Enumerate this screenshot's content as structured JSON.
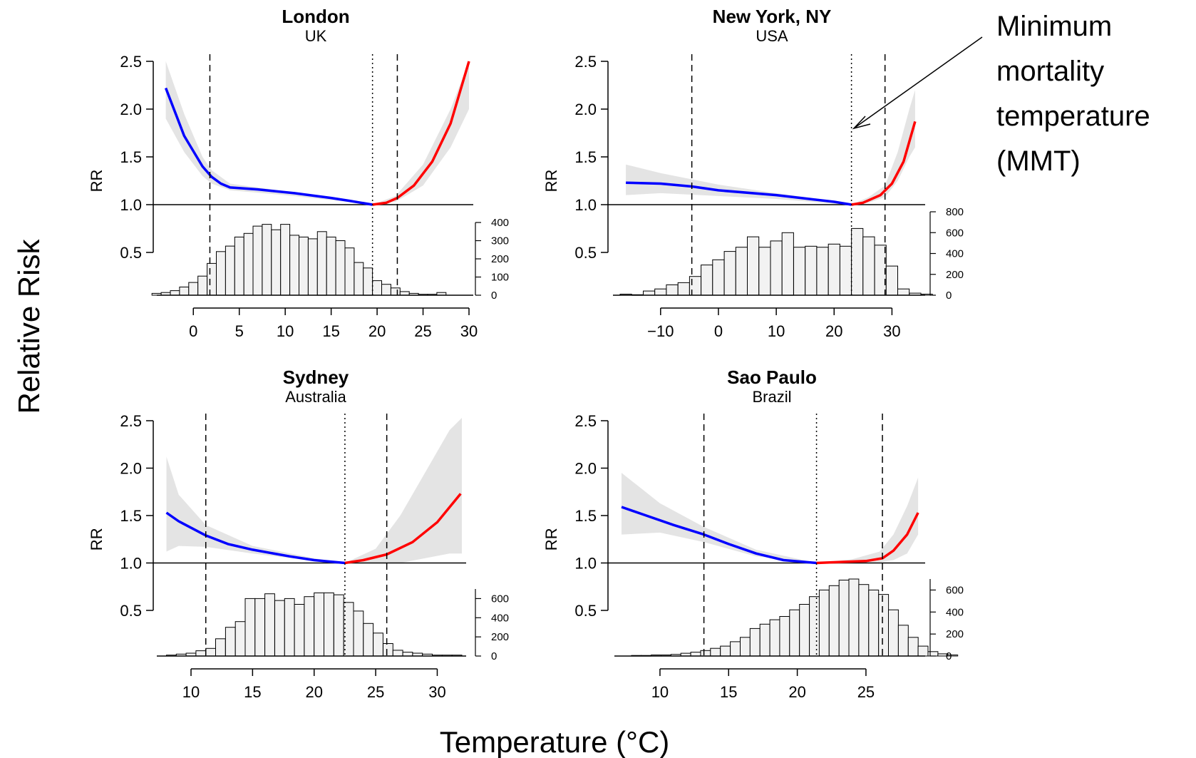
{
  "figure": {
    "ylabel": "Relative Risk",
    "xlabel": "Temperature (°C)",
    "annotation": [
      "Minimum",
      "mortality",
      "temperature",
      "(MMT)"
    ]
  },
  "colors": {
    "cold": "#0000ff",
    "heat": "#ff0000",
    "ci": "#e4e4e4",
    "bars": "#f2f2f2"
  },
  "chart_data": [
    {
      "type": "line",
      "title": "London",
      "subtitle": "UK",
      "ylabel": "RR",
      "xticks": [
        0,
        5,
        10,
        15,
        20,
        25,
        30
      ],
      "xlim": [
        -3.2,
        30.0
      ],
      "yticks": [
        "0.5",
        "1.0",
        "1.5",
        "2.0",
        "2.5"
      ],
      "ylim": [
        0.5,
        2.5
      ],
      "percentiles": [
        1.8,
        22.2
      ],
      "mmt": 19.5,
      "cold_curve": {
        "x": [
          -3,
          -1,
          1,
          2,
          3,
          4,
          7,
          11,
          15,
          17,
          19.5
        ],
        "y": [
          2.22,
          1.72,
          1.4,
          1.29,
          1.22,
          1.18,
          1.16,
          1.12,
          1.07,
          1.04,
          1.0
        ]
      },
      "heat_curve": {
        "x": [
          19.5,
          21,
          22.2,
          24,
          26,
          28,
          30
        ],
        "y": [
          1.0,
          1.02,
          1.07,
          1.2,
          1.45,
          1.85,
          2.5
        ]
      },
      "ci_upper": {
        "x": [
          -3,
          -1,
          1,
          2,
          4,
          10,
          19.5,
          22,
          25,
          28,
          30
        ],
        "y": [
          2.5,
          1.95,
          1.5,
          1.36,
          1.22,
          1.14,
          1.0,
          1.09,
          1.42,
          2.0,
          2.5
        ]
      },
      "ci_lower": {
        "x": [
          -3,
          -1,
          1,
          2,
          4,
          10,
          19.5,
          22,
          25,
          28,
          30
        ],
        "y": [
          1.9,
          1.55,
          1.3,
          1.22,
          1.15,
          1.1,
          1.0,
          1.03,
          1.2,
          1.6,
          2.0
        ]
      },
      "hist": {
        "start": -4.5,
        "width": 1.0,
        "counts": [
          10,
          15,
          25,
          45,
          70,
          105,
          175,
          240,
          270,
          320,
          340,
          380,
          390,
          360,
          390,
          330,
          320,
          310,
          350,
          320,
          300,
          260,
          180,
          150,
          80,
          60,
          40,
          20,
          10,
          5,
          5,
          15
        ],
        "ticks": [
          "0",
          "100",
          "200",
          "300",
          "400"
        ],
        "max": 400
      }
    },
    {
      "type": "line",
      "title": "New York, NY",
      "subtitle": "USA",
      "ylabel": "RR",
      "xticks": [
        -10,
        0,
        10,
        20,
        30
      ],
      "xlim": [
        -17.0,
        35.0
      ],
      "yticks": [
        "0.5",
        "1.0",
        "1.5",
        "2.0",
        "2.5"
      ],
      "ylim": [
        0.5,
        2.5
      ],
      "percentiles": [
        -4.6,
        28.8
      ],
      "mmt": 23.0,
      "cold_curve": {
        "x": [
          -16,
          -10,
          -4.6,
          0,
          10,
          20,
          23
        ],
        "y": [
          1.23,
          1.22,
          1.19,
          1.15,
          1.1,
          1.03,
          1.0
        ]
      },
      "heat_curve": {
        "x": [
          23,
          25,
          28,
          30,
          32,
          34
        ],
        "y": [
          1.0,
          1.02,
          1.1,
          1.22,
          1.45,
          1.87
        ]
      },
      "ci_upper": {
        "x": [
          -16,
          -10,
          0,
          10,
          20,
          23,
          26,
          28.8,
          31,
          33,
          34
        ],
        "y": [
          1.42,
          1.33,
          1.21,
          1.12,
          1.04,
          1.0,
          1.08,
          1.2,
          1.55,
          2.0,
          2.2
        ]
      },
      "ci_lower": {
        "x": [
          -16,
          -10,
          0,
          10,
          20,
          23,
          26,
          28.8,
          31,
          33,
          34
        ],
        "y": [
          1.1,
          1.12,
          1.09,
          1.06,
          1.01,
          1.0,
          1.02,
          1.08,
          1.25,
          1.5,
          1.6
        ]
      },
      "hist": {
        "start": -17,
        "width": 2.0,
        "counts": [
          10,
          5,
          40,
          60,
          100,
          120,
          180,
          290,
          340,
          420,
          460,
          560,
          460,
          520,
          600,
          460,
          470,
          460,
          490,
          470,
          640,
          560,
          480,
          280,
          60,
          20,
          10
        ],
        "ticks": [
          "0",
          "200",
          "400",
          "600",
          "800"
        ],
        "max": 800
      }
    },
    {
      "type": "line",
      "title": "Sydney",
      "subtitle": "Australia",
      "ylabel": "RR",
      "xticks": [
        10,
        15,
        20,
        25,
        30
      ],
      "xlim": [
        7.8,
        32.0
      ],
      "yticks": [
        "0.5",
        "1.0",
        "1.5",
        "2.0",
        "2.5"
      ],
      "ylim": [
        0.5,
        2.5
      ],
      "percentiles": [
        11.2,
        25.9
      ],
      "mmt": 22.5,
      "cold_curve": {
        "x": [
          8,
          9,
          11.2,
          13,
          15,
          18,
          20,
          22.5
        ],
        "y": [
          1.53,
          1.44,
          1.29,
          1.2,
          1.14,
          1.07,
          1.03,
          1.0
        ]
      },
      "heat_curve": {
        "x": [
          22.5,
          24,
          25.9,
          28,
          30,
          31.9
        ],
        "y": [
          1.0,
          1.03,
          1.09,
          1.22,
          1.43,
          1.73
        ]
      },
      "ci_upper": {
        "x": [
          8,
          9,
          11.2,
          15,
          20,
          22.5,
          25,
          27,
          29,
          31,
          32
        ],
        "y": [
          2.12,
          1.72,
          1.4,
          1.18,
          1.05,
          1.0,
          1.15,
          1.5,
          1.95,
          2.4,
          2.6
        ]
      },
      "ci_lower": {
        "x": [
          8,
          9,
          11.2,
          15,
          20,
          22.5,
          25,
          27,
          29,
          31,
          32
        ],
        "y": [
          1.12,
          1.18,
          1.17,
          1.1,
          1.02,
          1.0,
          1.0,
          1.0,
          1.05,
          1.1,
          1.1
        ]
      },
      "hist": {
        "start": 8,
        "width": 0.8,
        "counts": [
          10,
          20,
          30,
          55,
          80,
          180,
          300,
          360,
          600,
          600,
          650,
          580,
          600,
          540,
          620,
          660,
          660,
          640,
          560,
          470,
          340,
          240,
          130,
          60,
          40,
          30,
          20,
          10,
          10,
          10
        ],
        "ticks": [
          "0",
          "200",
          "400",
          "600"
        ],
        "max": 700
      }
    },
    {
      "type": "line",
      "title": "Sao Paulo",
      "subtitle": "Brazil",
      "ylabel": "RR",
      "xticks": [
        10,
        15,
        20,
        25
      ],
      "xlim": [
        7.2,
        29.0
      ],
      "yticks": [
        "0.5",
        "1.0",
        "1.5",
        "2.0",
        "2.5"
      ],
      "ylim": [
        0.5,
        2.5
      ],
      "percentiles": [
        13.2,
        26.2
      ],
      "mmt": 21.4,
      "cold_curve": {
        "x": [
          7.2,
          9,
          11,
          13.2,
          15,
          17,
          19,
          21.4
        ],
        "y": [
          1.59,
          1.5,
          1.4,
          1.3,
          1.2,
          1.1,
          1.03,
          1.0
        ]
      },
      "heat_curve": {
        "x": [
          21.4,
          23,
          25,
          26.2,
          27,
          28,
          28.8
        ],
        "y": [
          1.0,
          1.01,
          1.02,
          1.05,
          1.13,
          1.3,
          1.53
        ]
      },
      "ci_upper": {
        "x": [
          7.2,
          10,
          13.2,
          17,
          21.4,
          24,
          26,
          27,
          28,
          28.8
        ],
        "y": [
          1.95,
          1.63,
          1.38,
          1.14,
          1.0,
          1.04,
          1.12,
          1.3,
          1.6,
          1.9
        ]
      },
      "ci_lower": {
        "x": [
          7.2,
          10,
          13.2,
          17,
          21.4,
          24,
          26,
          27,
          28,
          28.8
        ],
        "y": [
          1.3,
          1.32,
          1.22,
          1.07,
          1.0,
          1.0,
          1.01,
          1.03,
          1.1,
          1.3
        ]
      },
      "hist": {
        "start": 7.2,
        "width": 0.72,
        "counts": [
          0,
          5,
          5,
          10,
          10,
          15,
          25,
          35,
          50,
          70,
          90,
          130,
          170,
          250,
          290,
          330,
          360,
          420,
          470,
          540,
          600,
          640,
          690,
          700,
          650,
          600,
          560,
          420,
          280,
          170,
          90,
          40,
          20,
          10
        ],
        "ticks": [
          "0",
          "200",
          "400",
          "600"
        ],
        "max": 700
      }
    }
  ]
}
